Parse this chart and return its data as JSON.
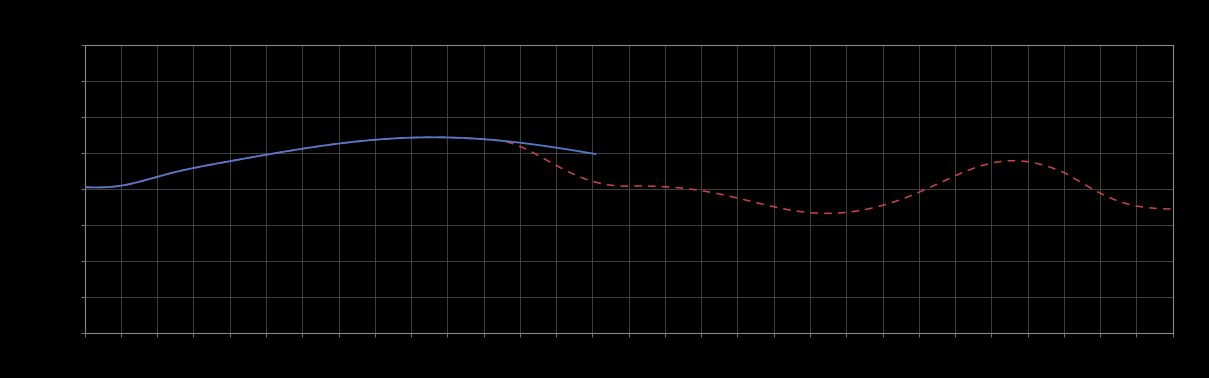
{
  "background_color": "#000000",
  "plot_bg_color": "#000000",
  "grid_color": "#4a4a4a",
  "blue_line_color": "#5577cc",
  "red_line_color": "#cc4444",
  "figsize": [
    12.09,
    3.78
  ],
  "dpi": 100,
  "xlim": [
    0,
    100
  ],
  "ylim": [
    0,
    10
  ],
  "spine_color": "#888888",
  "n_xticks": 30,
  "n_yticks": 8
}
